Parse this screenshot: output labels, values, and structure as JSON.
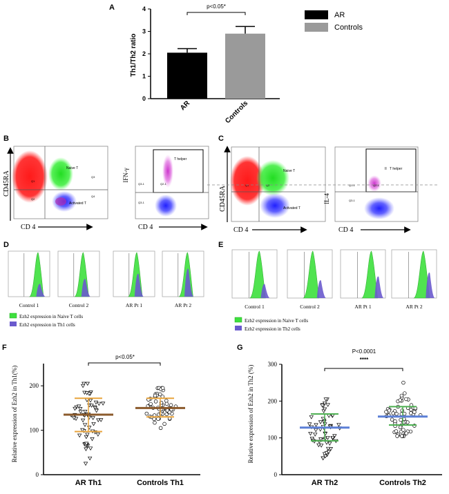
{
  "panel_labels": {
    "a": "A",
    "b": "B",
    "c": "C",
    "d": "D",
    "e": "E",
    "f": "F",
    "g": "G"
  },
  "chart_data": [
    {
      "id": "A",
      "type": "bar",
      "categories": [
        "AR",
        "Controls"
      ],
      "values": [
        2.05,
        2.9
      ],
      "errors": [
        0.18,
        0.32
      ],
      "colors": [
        "#000000",
        "#9a9a9a"
      ],
      "legend": [
        "AR",
        "Controls"
      ],
      "ylabel": "Th1/Th2 ratio",
      "ylim": [
        0,
        4
      ],
      "yticks": [
        "0",
        "1",
        "2",
        "3",
        "4"
      ],
      "annotation": "p<0.05*"
    },
    {
      "id": "F",
      "type": "scatter",
      "categories": [
        "AR Th1",
        "Controls Th1"
      ],
      "means": [
        135,
        150
      ],
      "sd_upper": [
        172,
        172
      ],
      "sd_lower": [
        97,
        130
      ],
      "ranges": [
        [
          25,
          205
        ],
        [
          105,
          195
        ]
      ],
      "ylabel": "Relative expression of Ezh2 in Th1(%)",
      "ylim": [
        0,
        250
      ],
      "yticks": [
        "0",
        "100",
        "200"
      ],
      "annotation": "p<0.05*"
    },
    {
      "id": "G",
      "type": "scatter",
      "categories": [
        "AR Th2",
        "Controls  Th2"
      ],
      "means": [
        128,
        158
      ],
      "sd_upper": [
        165,
        185
      ],
      "sd_lower": [
        92,
        135
      ],
      "ranges": [
        [
          45,
          205
        ],
        [
          105,
          250
        ]
      ],
      "ylabel": "Relative expression of Ezh2 in Th2 (%)",
      "ylim": [
        0,
        300
      ],
      "yticks": [
        "0",
        "100",
        "200",
        "300"
      ],
      "annotation": "P<0.0001",
      "stars": "****"
    }
  ],
  "flow_b": {
    "plot1": {
      "ylabel": "CD45RA",
      "xlabel": "CD 4",
      "gates": [
        "Naive T",
        "Activated T",
        "Q3",
        "Q4",
        "Q1",
        "Q2"
      ]
    },
    "plot2": {
      "ylabel": "IFN-γ",
      "xlabel": "CD 4",
      "gates": [
        "T helper",
        "Q3-1",
        "Q2-1",
        "Q3-1"
      ]
    }
  },
  "flow_c": {
    "plot1": {
      "ylabel": "CD45RA",
      "xlabel": "CD 4",
      "gates": [
        "Naive T",
        "Activated T",
        "Q1",
        "Q2"
      ]
    },
    "plot2": {
      "ylabel": "IL-4",
      "xlabel": "CD 4",
      "gates": [
        "T helper",
        "Q1-1",
        "Q2-1",
        "Q3-1",
        "II"
      ]
    }
  },
  "histograms_d": {
    "labels": [
      "Control 1",
      "Control 2",
      "AR Pt 1",
      "AR Pt 2"
    ],
    "legend": [
      "Ezh2 expression in Naive T cells",
      "Ezh2 expression in Th1 cells"
    ]
  },
  "histograms_e": {
    "labels": [
      "Control 1",
      "Control 2",
      "AR Pt 1",
      "AR Pt 2"
    ],
    "legend": [
      "Ezh2 expression in Naive T cells",
      "Ezh2 expression in Th2 cells"
    ]
  },
  "colors": {
    "naive_green": "#3ee03e",
    "th_purple": "#6a5acd",
    "bar_ar": "#000000",
    "bar_ctrl": "#9a9a9a",
    "mean_f": "#8b5a2b",
    "sd_f": "#e8a33a",
    "mean_g": "#5b7fd6",
    "sd_g": "#4caf50"
  }
}
